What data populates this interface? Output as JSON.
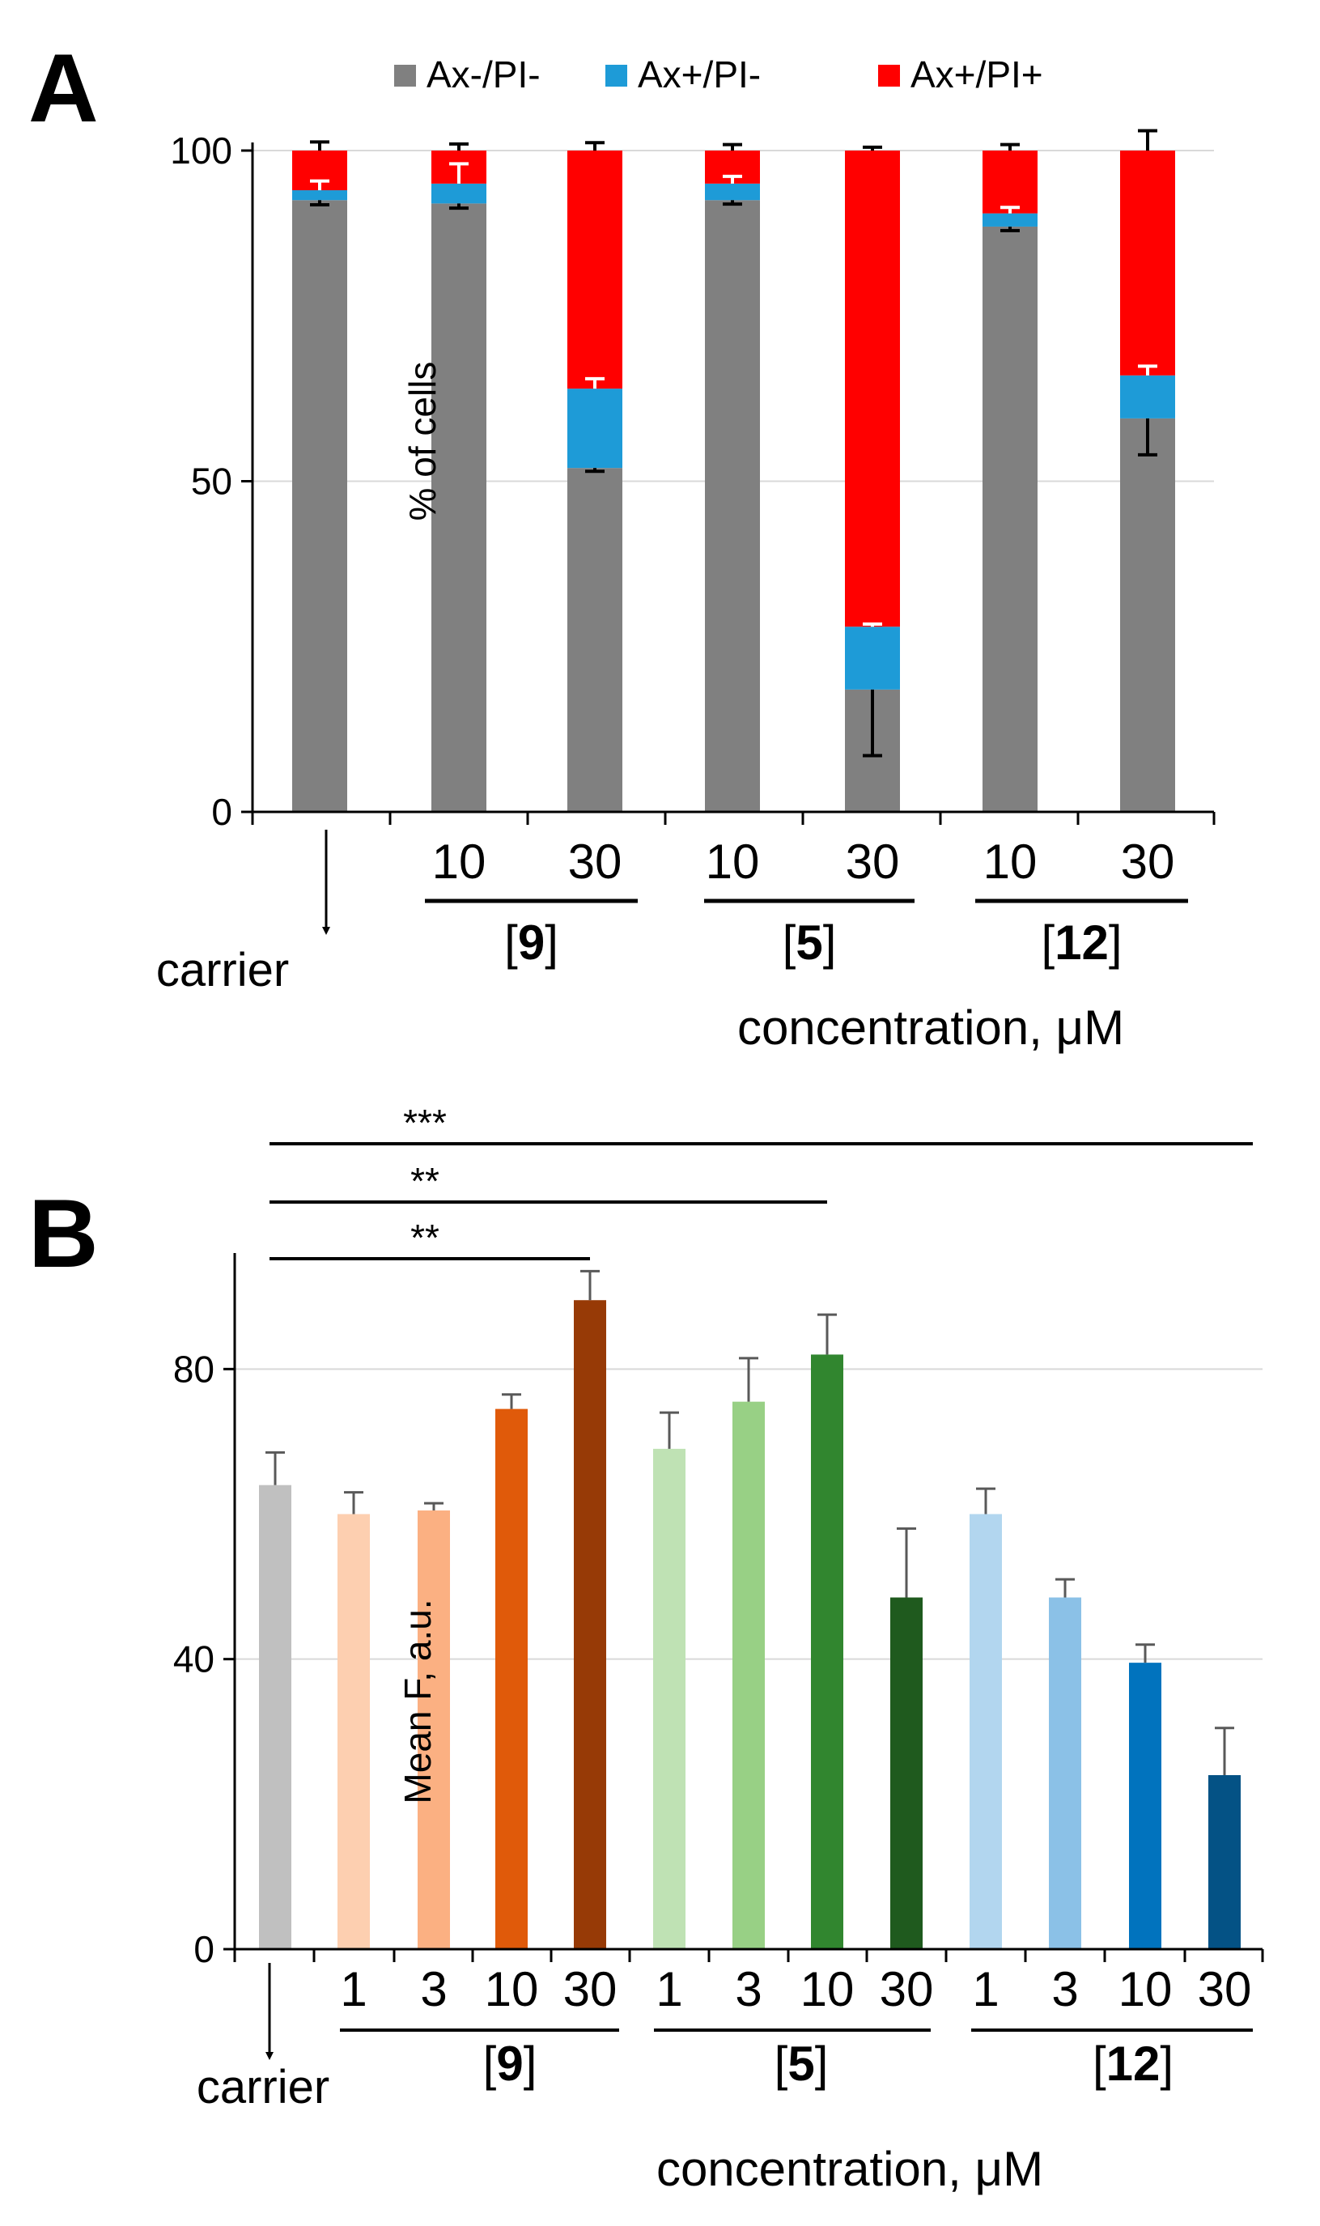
{
  "colors": {
    "ax_neg_pi_neg": "#808080",
    "ax_pos_pi_neg": "#1e9bd7",
    "ax_pos_pi_pos": "#ff0000",
    "grid": "#d9d9d9",
    "axis": "#000000",
    "b_bars": [
      "#c0c0c0",
      "#fdcfb0",
      "#fbb082",
      "#e05a0a",
      "#973a06",
      "#bfe2b4",
      "#98d085",
      "#31862f",
      "#1f5a1e",
      "#b2d6ef",
      "#8bc1e7",
      "#0173be",
      "#045285"
    ]
  },
  "chart_data": [
    {
      "panel": "A",
      "type": "bar",
      "stacked": true,
      "title": "",
      "ylabel": "% of cells",
      "xlabel": "concentration, μM",
      "ylim": [
        0,
        100
      ],
      "yticks": [
        "0",
        "50",
        "100"
      ],
      "grid": true,
      "legend_position": "top",
      "carrier_label": "carrier",
      "categories": [
        "carrier",
        "10",
        "30",
        "10",
        "30",
        "10",
        "30"
      ],
      "groups": [
        {
          "open": "[",
          "label": "9",
          "close": "]"
        },
        {
          "open": "[",
          "label": "5",
          "close": "]"
        },
        {
          "open": "[",
          "label": "12",
          "close": "]"
        }
      ],
      "series": [
        {
          "name": "Ax-/PI-",
          "values": [
            92.5,
            92,
            52,
            92.5,
            18.5,
            88.5,
            59.5
          ],
          "errors": [
            0.7,
            0.7,
            0.5,
            0.6,
            10,
            0.6,
            5.5
          ]
        },
        {
          "name": "Ax+/PI-",
          "values": [
            1.5,
            3,
            12,
            2.5,
            9.5,
            2,
            6.5
          ],
          "errors": [
            1.4,
            3,
            1.5,
            1.1,
            0.4,
            0.9,
            1.4
          ]
        },
        {
          "name": "Ax+/PI+",
          "values": [
            6,
            5,
            36,
            5,
            72,
            9.5,
            34
          ],
          "errors": [
            1.3,
            1,
            1.2,
            0.9,
            0.5,
            0.9,
            3
          ]
        }
      ]
    },
    {
      "panel": "B",
      "type": "bar",
      "title": "",
      "ylabel": "Mean F, a.u.",
      "xlabel": "concentration, μM",
      "ylim": [
        0,
        96
      ],
      "yticks": [
        "0",
        "40",
        "80"
      ],
      "grid": true,
      "carrier_label": "carrier",
      "categories": [
        "carrier",
        "1",
        "3",
        "10",
        "30",
        "1",
        "3",
        "10",
        "30",
        "1",
        "3",
        "10",
        "30"
      ],
      "values": [
        64,
        60,
        60.5,
        74.5,
        89.5,
        69,
        75.5,
        82,
        48.5,
        60,
        48.5,
        39.5,
        24
      ],
      "errors": [
        4.5,
        3,
        1,
        2,
        4,
        5,
        6,
        5.5,
        9.5,
        3.5,
        2.5,
        2.5,
        6.5
      ],
      "groups": [
        {
          "open": "[",
          "label": "9",
          "close": "]"
        },
        {
          "open": "[",
          "label": "5",
          "close": "]"
        },
        {
          "open": "[",
          "label": "12",
          "close": "]"
        }
      ],
      "significance": [
        {
          "label": "***",
          "from": "carrier",
          "to": "[12] 30"
        },
        {
          "label": "**",
          "from": "carrier",
          "to": "[5] 10"
        },
        {
          "label": "**",
          "from": "carrier",
          "to": "[9] 30"
        }
      ]
    }
  ],
  "panel_a_label": "A",
  "panel_b_label": "B"
}
